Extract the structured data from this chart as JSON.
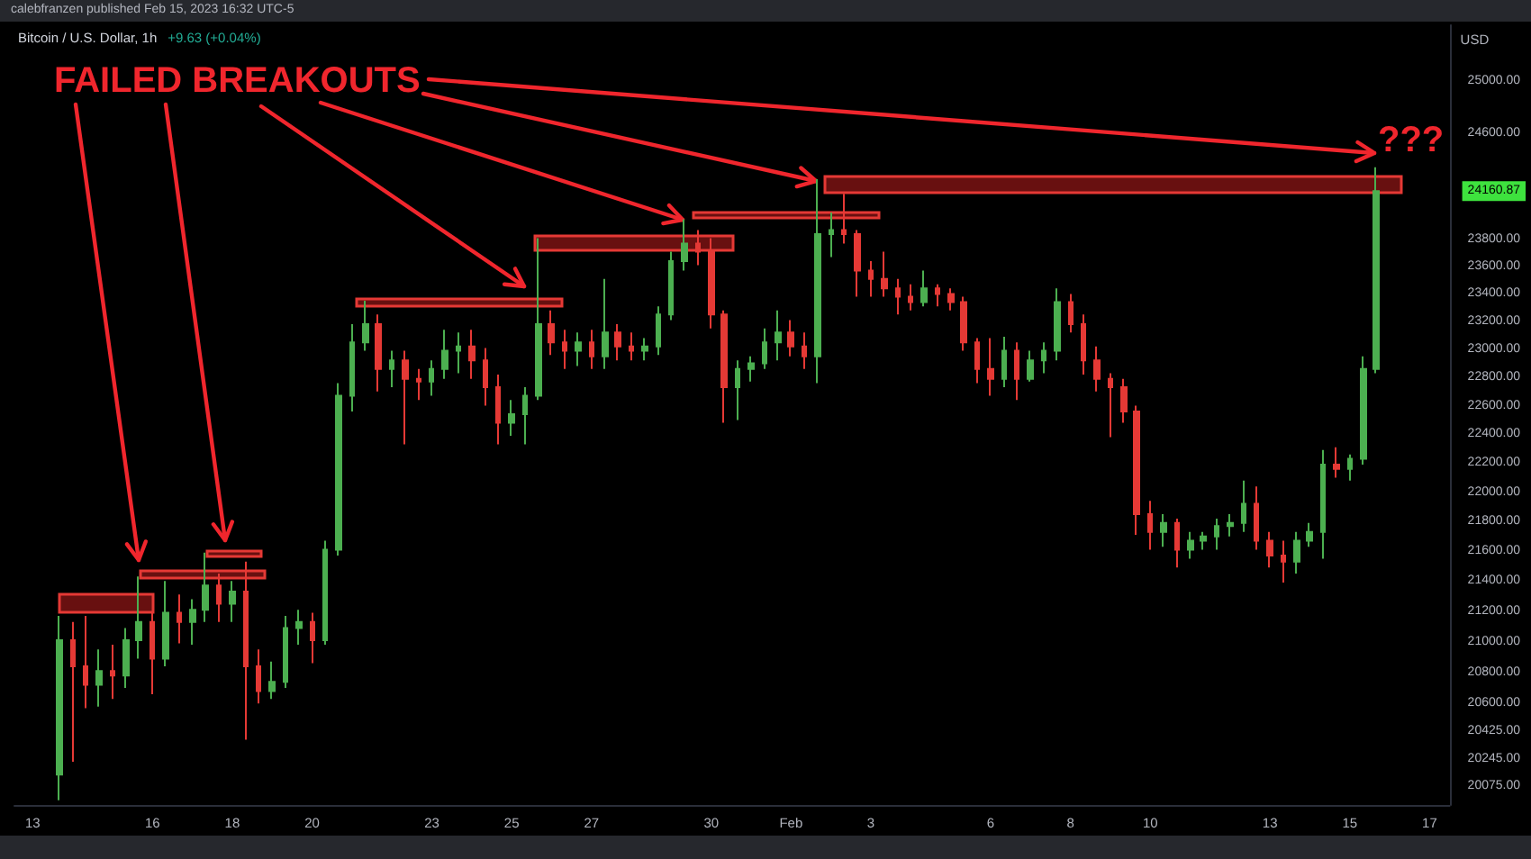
{
  "chart_data": {
    "type": "candlestick",
    "title": "Bitcoin / U.S. Dollar, 1h",
    "subtitle": "+9.63 (+0.04%)",
    "ylabel": "USD",
    "log": true,
    "annotations": [
      "calebfranzen published Feb 15, 2023 16:32 UTC-5",
      {
        "text": "FAILED BREAKOUTS",
        "x": "2023-02-01T16:00",
        "y": 24250
      },
      "???"
    ],
    "x": [
      "2023-01-13T16:00",
      "2023-01-14T00:00",
      "2023-01-14T08:00",
      "2023-01-14T16:00",
      "2023-01-15T00:00",
      "2023-01-15T08:00",
      "2023-01-15T16:00",
      "2023-01-16T00:00",
      "2023-01-16T08:00",
      "2023-01-16T16:00",
      "2023-01-17T00:00",
      "2023-01-17T08:00",
      "2023-01-17T16:00",
      "2023-01-18T00:00",
      "2023-01-18T08:00",
      "2023-01-18T16:00",
      "2023-01-19T00:00",
      "2023-01-19T08:00",
      "2023-01-19T16:00",
      "2023-01-20T00:00",
      "2023-01-20T08:00",
      "2023-01-20T16:00",
      "2023-01-21T00:00",
      "2023-01-21T08:00",
      "2023-01-21T16:00",
      "2023-01-22T00:00",
      "2023-01-22T08:00",
      "2023-01-22T16:00",
      "2023-01-23T00:00",
      "2023-01-23T08:00",
      "2023-01-23T16:00",
      "2023-01-24T00:00",
      "2023-01-24T08:00",
      "2023-01-24T16:00",
      "2023-01-25T00:00",
      "2023-01-25T08:00",
      "2023-01-25T16:00",
      "2023-01-26T00:00",
      "2023-01-26T08:00",
      "2023-01-26T16:00",
      "2023-01-27T00:00",
      "2023-01-27T08:00",
      "2023-01-27T16:00",
      "2023-01-28T00:00",
      "2023-01-28T08:00",
      "2023-01-28T16:00",
      "2023-01-29T00:00",
      "2023-01-29T08:00",
      "2023-01-29T16:00",
      "2023-01-30T00:00",
      "2023-01-30T08:00",
      "2023-01-30T16:00",
      "2023-01-31T00:00",
      "2023-01-31T08:00",
      "2023-01-31T16:00",
      "2023-02-01T00:00",
      "2023-02-01T08:00",
      "2023-02-01T16:00",
      "2023-02-02T00:00",
      "2023-02-02T08:00",
      "2023-02-02T16:00",
      "2023-02-03T00:00",
      "2023-02-03T08:00",
      "2023-02-03T16:00",
      "2023-02-04T00:00",
      "2023-02-04T08:00",
      "2023-02-04T16:00",
      "2023-02-05T00:00",
      "2023-02-05T08:00",
      "2023-02-05T16:00",
      "2023-02-06T00:00",
      "2023-02-06T08:00",
      "2023-02-06T16:00",
      "2023-02-07T00:00",
      "2023-02-07T08:00",
      "2023-02-07T16:00",
      "2023-02-08T00:00",
      "2023-02-08T08:00",
      "2023-02-08T16:00",
      "2023-02-09T00:00",
      "2023-02-09T08:00",
      "2023-02-09T16:00",
      "2023-02-10T00:00",
      "2023-02-10T08:00",
      "2023-02-10T16:00",
      "2023-02-11T00:00",
      "2023-02-11T08:00",
      "2023-02-11T16:00",
      "2023-02-12T00:00",
      "2023-02-12T08:00",
      "2023-02-12T16:00",
      "2023-02-13T00:00",
      "2023-02-13T08:00",
      "2023-02-13T16:00",
      "2023-02-14T00:00",
      "2023-02-14T08:00",
      "2023-02-14T16:00",
      "2023-02-15T00:00",
      "2023-02-15T08:00",
      "2023-02-15T16:00"
    ],
    "ohlc": [
      [
        20150,
        21170,
        19990,
        21010
      ],
      [
        21010,
        21130,
        20230,
        20840
      ],
      [
        20840,
        21170,
        20570,
        20720
      ],
      [
        20720,
        20950,
        20580,
        20810
      ],
      [
        20810,
        20980,
        20630,
        20780
      ],
      [
        20780,
        21090,
        20700,
        21010
      ],
      [
        21010,
        21430,
        20890,
        21130
      ],
      [
        21130,
        21190,
        20660,
        20890
      ],
      [
        20890,
        21400,
        20840,
        21190
      ],
      [
        21190,
        21310,
        20990,
        21130
      ],
      [
        21130,
        21280,
        20980,
        21210
      ],
      [
        21210,
        21590,
        21130,
        21370
      ],
      [
        21370,
        21450,
        21130,
        21250
      ],
      [
        21250,
        21400,
        21130,
        21330
      ],
      [
        21330,
        21530,
        20370,
        20840
      ],
      [
        20840,
        20950,
        20600,
        20680
      ],
      [
        20680,
        20870,
        20630,
        20740
      ],
      [
        20740,
        21170,
        20700,
        21090
      ],
      [
        21090,
        21210,
        20980,
        21130
      ],
      [
        21130,
        21190,
        20860,
        21010
      ],
      [
        21010,
        21670,
        20980,
        21610
      ],
      [
        21610,
        22760,
        21570,
        22670
      ],
      [
        22670,
        23180,
        22560,
        23050
      ],
      [
        23050,
        23350,
        22990,
        23180
      ],
      [
        23180,
        23250,
        22700,
        22860
      ],
      [
        22860,
        22990,
        22730,
        22920
      ],
      [
        22920,
        22990,
        22330,
        22790
      ],
      [
        22790,
        22860,
        22640,
        22770
      ],
      [
        22770,
        22920,
        22670,
        22860
      ],
      [
        22860,
        23140,
        22790,
        22990
      ],
      [
        22990,
        23120,
        22830,
        23020
      ],
      [
        23020,
        23140,
        22790,
        22920
      ],
      [
        22920,
        23010,
        22600,
        22730
      ],
      [
        22730,
        22820,
        22330,
        22480
      ],
      [
        22480,
        22640,
        22390,
        22540
      ],
      [
        22540,
        22730,
        22330,
        22670
      ],
      [
        22670,
        23810,
        22640,
        23180
      ],
      [
        23180,
        23280,
        22960,
        23050
      ],
      [
        23050,
        23140,
        22860,
        22990
      ],
      [
        22990,
        23120,
        22880,
        23050
      ],
      [
        23050,
        23140,
        22860,
        22950
      ],
      [
        22950,
        23510,
        22860,
        23120
      ],
      [
        23120,
        23180,
        22920,
        23020
      ],
      [
        23020,
        23120,
        22920,
        22990
      ],
      [
        22990,
        23080,
        22920,
        23020
      ],
      [
        23020,
        23310,
        22960,
        23250
      ],
      [
        23250,
        23710,
        23210,
        23640
      ],
      [
        23640,
        23950,
        23570,
        23770
      ],
      [
        23770,
        23870,
        23610,
        23710
      ],
      [
        23710,
        23810,
        23150,
        23250
      ],
      [
        23250,
        23280,
        22480,
        22730
      ],
      [
        22730,
        22920,
        22500,
        22860
      ],
      [
        22860,
        22950,
        22770,
        22900
      ],
      [
        22900,
        23150,
        22860,
        23050
      ],
      [
        23050,
        23280,
        22920,
        23120
      ],
      [
        23120,
        23210,
        22950,
        23020
      ],
      [
        23020,
        23120,
        22860,
        22950
      ],
      [
        22950,
        24250,
        22760,
        23840
      ],
      [
        23840,
        24000,
        23670,
        23870
      ],
      [
        23870,
        24140,
        23770,
        23840
      ],
      [
        23840,
        23870,
        23380,
        23570
      ],
      [
        23570,
        23640,
        23380,
        23510
      ],
      [
        23510,
        23710,
        23380,
        23440
      ],
      [
        23440,
        23510,
        23250,
        23380
      ],
      [
        23380,
        23470,
        23280,
        23340
      ],
      [
        23340,
        23570,
        23310,
        23440
      ],
      [
        23440,
        23470,
        23310,
        23400
      ],
      [
        23400,
        23440,
        23280,
        23340
      ],
      [
        23340,
        23380,
        22990,
        23050
      ],
      [
        23050,
        23080,
        22760,
        22860
      ],
      [
        22860,
        23080,
        22670,
        22790
      ],
      [
        22790,
        23090,
        22730,
        22990
      ],
      [
        22990,
        23050,
        22640,
        22790
      ],
      [
        22790,
        22990,
        22770,
        22920
      ],
      [
        22920,
        23050,
        22830,
        22990
      ],
      [
        22990,
        23440,
        22920,
        23340
      ],
      [
        23340,
        23400,
        23120,
        23180
      ],
      [
        23180,
        23250,
        22820,
        22920
      ],
      [
        22920,
        23020,
        22700,
        22790
      ],
      [
        22790,
        22830,
        22380,
        22730
      ],
      [
        22730,
        22790,
        22480,
        22560
      ],
      [
        22560,
        22600,
        21710,
        21850
      ],
      [
        21850,
        21940,
        21610,
        21730
      ],
      [
        21730,
        21850,
        21630,
        21790
      ],
      [
        21790,
        21820,
        21490,
        21610
      ],
      [
        21610,
        21730,
        21550,
        21670
      ],
      [
        21670,
        21730,
        21610,
        21700
      ],
      [
        21700,
        21820,
        21610,
        21770
      ],
      [
        21770,
        21850,
        21700,
        21790
      ],
      [
        21790,
        22080,
        21730,
        21920
      ],
      [
        21920,
        22040,
        21610,
        21670
      ],
      [
        21670,
        21730,
        21490,
        21570
      ],
      [
        21570,
        21670,
        21390,
        21530
      ],
      [
        21530,
        21730,
        21450,
        21670
      ],
      [
        21670,
        21790,
        21630,
        21730
      ],
      [
        21730,
        22290,
        21550,
        22190
      ],
      [
        22190,
        22310,
        22100,
        22160
      ],
      [
        22160,
        22260,
        22080,
        22230
      ],
      [
        22230,
        22950,
        22190,
        22860
      ],
      [
        22860,
        24340,
        22830,
        24160.87
      ]
    ],
    "xlim": [
      "2023-01-12T13:00",
      "2023-02-17T12:00"
    ],
    "xticks": [
      {
        "value": "2023-01-13",
        "label": "13"
      },
      {
        "value": "2023-01-16",
        "label": "16"
      },
      {
        "value": "2023-01-18",
        "label": "18"
      },
      {
        "value": "2023-01-20",
        "label": "20"
      },
      {
        "value": "2023-01-23",
        "label": "23"
      },
      {
        "value": "2023-01-25",
        "label": "25"
      },
      {
        "value": "2023-01-27",
        "label": "27"
      },
      {
        "value": "2023-01-30",
        "label": "30"
      },
      {
        "value": "2023-02-01",
        "label": "Feb"
      },
      {
        "value": "2023-02-03",
        "label": "3"
      },
      {
        "value": "2023-02-06",
        "label": "6"
      },
      {
        "value": "2023-02-08",
        "label": "8"
      },
      {
        "value": "2023-02-10",
        "label": "10"
      },
      {
        "value": "2023-02-13",
        "label": "13"
      },
      {
        "value": "2023-02-15",
        "label": "15"
      },
      {
        "value": "2023-02-17",
        "label": "17"
      }
    ],
    "ylim": [
      19960,
      25440
    ],
    "yticks": [
      {
        "value": 20075,
        "label": "20075.00"
      },
      {
        "value": 20245,
        "label": "20245.00"
      },
      {
        "value": 20425,
        "label": "20425.00"
      },
      {
        "value": 20600,
        "label": "20600.00"
      },
      {
        "value": 20800,
        "label": "20800.00"
      },
      {
        "value": 21000,
        "label": "21000.00"
      },
      {
        "value": 21200,
        "label": "21200.00"
      },
      {
        "value": 21400,
        "label": "21400.00"
      },
      {
        "value": 21600,
        "label": "21600.00"
      },
      {
        "value": 21800,
        "label": "21800.00"
      },
      {
        "value": 22000,
        "label": "22000.00"
      },
      {
        "value": 22200,
        "label": "22200.00"
      },
      {
        "value": 22400,
        "label": "22400.00"
      },
      {
        "value": 22600,
        "label": "22600.00"
      },
      {
        "value": 22800,
        "label": "22800.00"
      },
      {
        "value": 23000,
        "label": "23000.00"
      },
      {
        "value": 23200,
        "label": "23200.00"
      },
      {
        "value": 23400,
        "label": "23400.00"
      },
      {
        "value": 23600,
        "label": "23600.00"
      },
      {
        "value": 23800,
        "label": "23800.00"
      },
      {
        "value": 24160.87,
        "label": "24160.87"
      },
      {
        "value": 24600,
        "label": "24600.00"
      },
      {
        "value": 25000,
        "label": "25000.00"
      }
    ]
  }
}
